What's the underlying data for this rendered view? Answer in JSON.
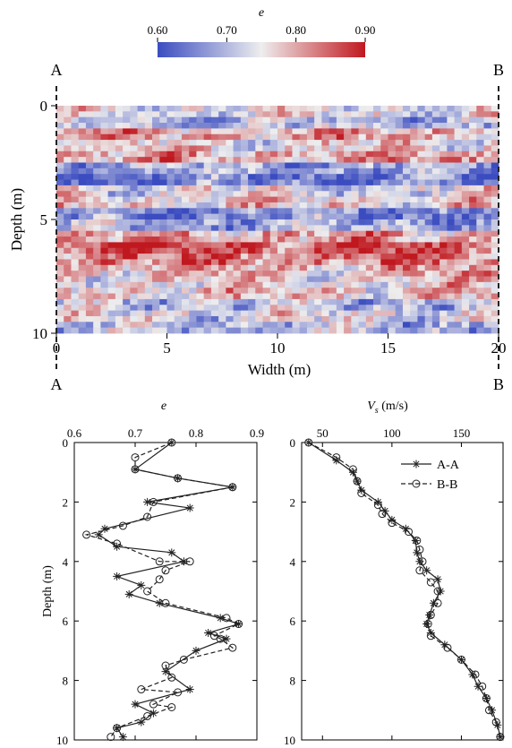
{
  "chart_data": [
    {
      "type": "heatmap",
      "colorbar": {
        "label": "e",
        "range": [
          0.6,
          0.9
        ],
        "ticks": [
          "0.60",
          "0.70",
          "0.80",
          "0.90"
        ],
        "low_color": "#3b4cc0",
        "mid_color": "#eeeeee",
        "high_color": "#c0181f"
      },
      "xlabel": "Width (m)",
      "ylabel": "Depth (m)",
      "xlim": [
        0,
        20
      ],
      "ylim": [
        10,
        0
      ],
      "xticks": [
        "0",
        "5",
        "10",
        "15",
        "20"
      ],
      "yticks": [
        "0",
        "5",
        "10"
      ],
      "grid": false,
      "section_lines": [
        {
          "top_label": "A",
          "bottom_label": "A",
          "x": 0
        },
        {
          "top_label": "B",
          "bottom_label": "B",
          "x": 20
        }
      ],
      "rows": 40,
      "cols": 60,
      "depth_profile": [
        0.74,
        0.74,
        0.7,
        0.7,
        0.8,
        0.8,
        0.76,
        0.76,
        0.8,
        0.8,
        0.68,
        0.68,
        0.65,
        0.65,
        0.74,
        0.74,
        0.77,
        0.77,
        0.66,
        0.66,
        0.69,
        0.69,
        0.8,
        0.8,
        0.86,
        0.86,
        0.83,
        0.83,
        0.79,
        0.79,
        0.76,
        0.76,
        0.78,
        0.78,
        0.71,
        0.71,
        0.74,
        0.74,
        0.7,
        0.7
      ]
    },
    {
      "type": "line",
      "title": "e",
      "ylabel": "Depth (m)",
      "xlim": [
        0.6,
        0.9
      ],
      "ylim": [
        10,
        0
      ],
      "xticks": [
        "0.6",
        "0.7",
        "0.8",
        "0.9"
      ],
      "yticks": [
        "0",
        "2",
        "4",
        "6",
        "8",
        "10"
      ],
      "series": [
        {
          "name": "A-A",
          "marker": "star",
          "dash": "solid",
          "x": [
            0.76,
            0.7,
            0.77,
            0.86,
            0.72,
            0.79,
            0.65,
            0.64,
            0.67,
            0.76,
            0.78,
            0.67,
            0.71,
            0.69,
            0.74,
            0.84,
            0.87,
            0.82,
            0.85,
            0.8,
            0.75,
            0.79,
            0.7,
            0.73,
            0.71,
            0.67,
            0.68
          ],
          "y": [
            0.0,
            0.9,
            1.2,
            1.5,
            2.0,
            2.2,
            2.9,
            3.1,
            3.5,
            3.7,
            4.0,
            4.5,
            4.8,
            5.1,
            5.4,
            5.9,
            6.1,
            6.4,
            6.6,
            7.0,
            7.7,
            8.3,
            8.8,
            9.1,
            9.4,
            9.6,
            9.9
          ]
        },
        {
          "name": "B-B",
          "marker": "circle",
          "dash": "dashed",
          "x": [
            0.76,
            0.7,
            0.7,
            0.77,
            0.86,
            0.73,
            0.72,
            0.68,
            0.62,
            0.67,
            0.74,
            0.79,
            0.75,
            0.74,
            0.72,
            0.75,
            0.85,
            0.87,
            0.83,
            0.84,
            0.86,
            0.78,
            0.75,
            0.76,
            0.71,
            0.77,
            0.73,
            0.76,
            0.72,
            0.67,
            0.66
          ],
          "y": [
            0.0,
            0.5,
            0.9,
            1.2,
            1.5,
            2.0,
            2.5,
            2.8,
            3.1,
            3.4,
            4.0,
            4.0,
            4.3,
            4.6,
            5.0,
            5.4,
            5.9,
            6.1,
            6.5,
            6.6,
            6.9,
            7.3,
            7.5,
            7.9,
            8.3,
            8.4,
            8.8,
            8.9,
            9.2,
            9.6,
            9.9
          ]
        }
      ]
    },
    {
      "type": "line",
      "title": "V_s (m/s)",
      "title_main": "V",
      "title_sub": "s",
      "title_rest": " (m/s)",
      "xlim": [
        35,
        180
      ],
      "ylim": [
        10,
        0
      ],
      "xticks": [
        {
          "v": 50,
          "t": "50"
        },
        {
          "v": 100,
          "t": "100"
        },
        {
          "v": 150,
          "t": "150"
        }
      ],
      "yticks": [
        "0",
        "2",
        "4",
        "6",
        "8",
        "10"
      ],
      "legend_position": "top-right",
      "series": [
        {
          "name": "A-A",
          "marker": "star",
          "dash": "solid",
          "x": [
            40,
            60,
            72,
            75,
            78,
            90,
            95,
            100,
            110,
            117,
            118,
            120,
            125,
            133,
            135,
            130,
            127,
            125,
            128,
            138,
            150,
            158,
            162,
            168,
            172,
            176,
            178
          ],
          "y": [
            0.0,
            0.6,
            1.0,
            1.3,
            1.6,
            2.0,
            2.3,
            2.6,
            2.9,
            3.3,
            3.7,
            4.0,
            4.3,
            4.6,
            5.0,
            5.4,
            5.8,
            6.1,
            6.4,
            6.8,
            7.3,
            7.8,
            8.2,
            8.6,
            9.0,
            9.5,
            9.9
          ]
        },
        {
          "name": "B-B",
          "marker": "circle",
          "dash": "dashed",
          "x": [
            40,
            60,
            72,
            75,
            78,
            90,
            93,
            100,
            112,
            118,
            120,
            122,
            120,
            128,
            133,
            133,
            128,
            126,
            128,
            140,
            150,
            160,
            165,
            168,
            170,
            175,
            178
          ],
          "y": [
            0.0,
            0.5,
            0.9,
            1.3,
            1.7,
            2.1,
            2.4,
            2.7,
            3.0,
            3.3,
            3.6,
            4.0,
            4.3,
            4.7,
            5.0,
            5.4,
            5.8,
            6.1,
            6.5,
            6.9,
            7.3,
            7.8,
            8.2,
            8.6,
            9.0,
            9.4,
            9.9
          ]
        }
      ]
    }
  ]
}
